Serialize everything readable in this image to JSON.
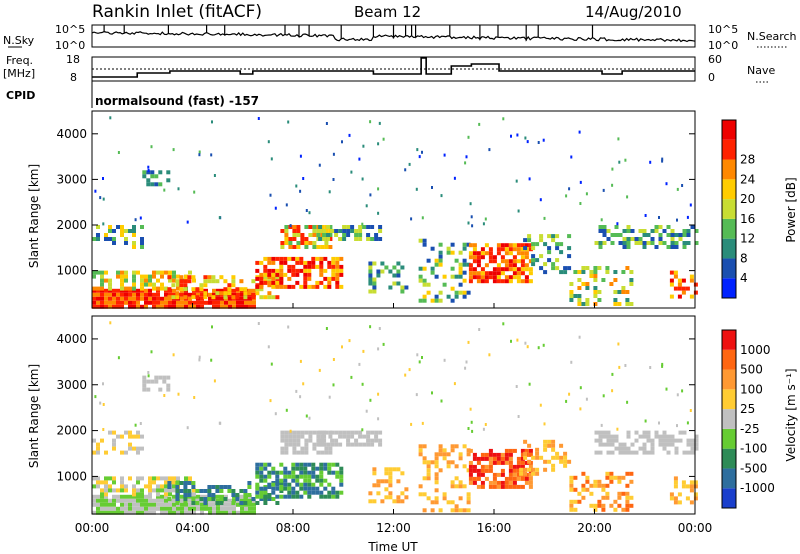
{
  "header": {
    "station": "Rankin Inlet (fitACF)",
    "beam": "Beam 12",
    "date": "14/Aug/2010"
  },
  "info_panels": {
    "nsky_label": "N.Sky",
    "nsky_ticks": [
      "10^5",
      "10^0"
    ],
    "nsearch_label": "N.Search",
    "nsearch_ticks": [
      "10^5",
      "10^0"
    ],
    "freq_label_1": "Freq.",
    "freq_label_2": "[MHz]",
    "freq_ticks": [
      "18",
      "8"
    ],
    "nave_label": "Nave",
    "nave_ticks": [
      "60",
      "0"
    ],
    "cpid_label": "CPID",
    "cpid_text": "normalsound (fast) -157"
  },
  "chart_data": [
    {
      "type": "heatmap",
      "id": "power",
      "ylabel": "Slant Range [km]",
      "y_ticks": [
        "1000",
        "2000",
        "3000",
        "4000"
      ],
      "ylim": [
        180,
        4500
      ],
      "x_ticks": [
        "00:00",
        "04:00",
        "08:00",
        "12:00",
        "16:00",
        "20:00",
        "00:00"
      ],
      "xlim": [
        0,
        24
      ],
      "colorbar": {
        "label": "Power [dB]",
        "ticks": [
          "4",
          "8",
          "12",
          "16",
          "20",
          "24",
          "28"
        ],
        "colors": [
          "#0022ff",
          "#1a4fb0",
          "#2a8c7a",
          "#55bb55",
          "#c8dd33",
          "#ffcc00",
          "#ff8800",
          "#ff2200",
          "#ee0000"
        ]
      }
    },
    {
      "type": "heatmap",
      "id": "velocity",
      "ylabel": "Slant Range [km]",
      "y_ticks": [
        "1000",
        "2000",
        "3000",
        "4000"
      ],
      "ylim": [
        180,
        4500
      ],
      "x_ticks": [
        "00:00",
        "04:00",
        "08:00",
        "12:00",
        "16:00",
        "20:00",
        "00:00"
      ],
      "xlim": [
        0,
        24
      ],
      "xlabel": "Time UT",
      "colorbar": {
        "label": "Velocity [m s⁻¹]",
        "ticks": [
          "1000",
          "500",
          "100",
          "25",
          "-25",
          "-100",
          "-500",
          "-1000"
        ],
        "colors": [
          "#1a3fcc",
          "#2e6e9e",
          "#2e8b57",
          "#66cc33",
          "#c0c0c0",
          "#ffcc33",
          "#ff9933",
          "#ff6611",
          "#ee1111"
        ]
      }
    }
  ]
}
